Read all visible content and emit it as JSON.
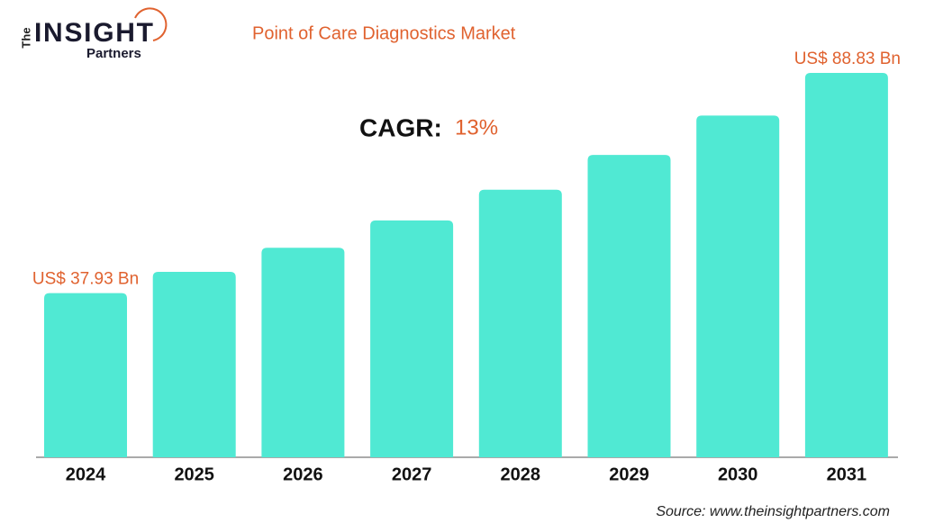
{
  "logo": {
    "the": "The",
    "insight": "INSIGHT",
    "partners": "Partners"
  },
  "chart_data": {
    "type": "bar",
    "title": "Point of Care Diagnostics Market",
    "cagr_label": "CAGR:",
    "cagr_value": "13%",
    "categories": [
      "2024",
      "2025",
      "2026",
      "2027",
      "2028",
      "2029",
      "2030",
      "2031"
    ],
    "values": [
      37.93,
      42.86,
      48.43,
      54.73,
      61.84,
      69.88,
      78.97,
      88.83
    ],
    "value_labels": [
      "US$ 37.93 Bn",
      null,
      null,
      null,
      null,
      null,
      null,
      "US$ 88.83 Bn"
    ],
    "color": "#50e9d3",
    "source": "Source: www.theinsightpartners.com"
  }
}
